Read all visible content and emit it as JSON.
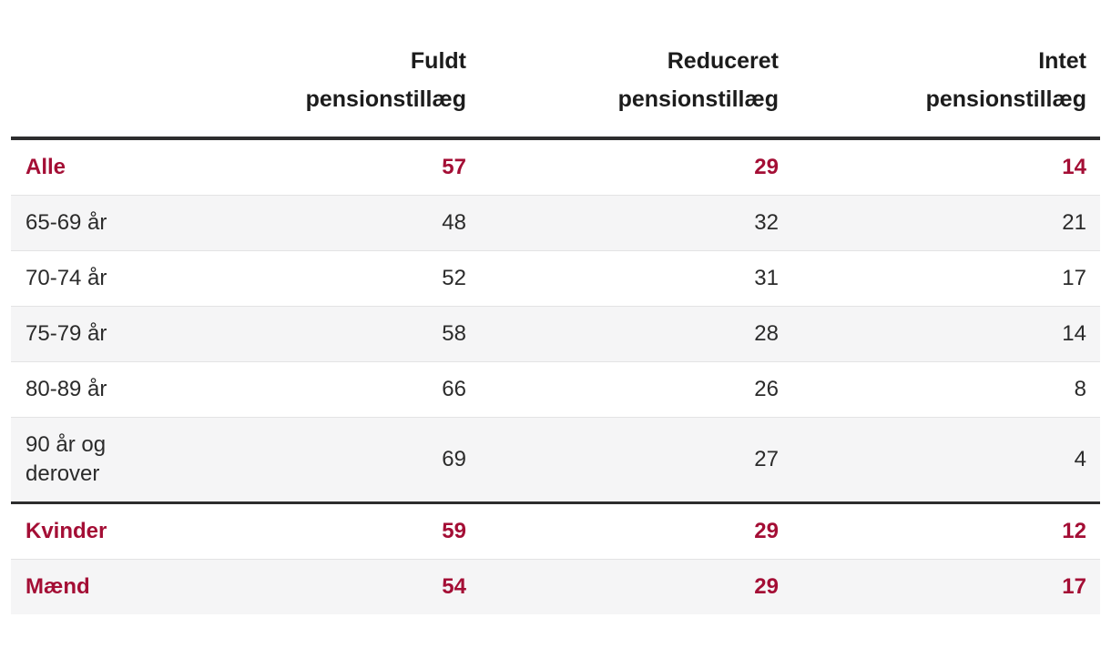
{
  "colors": {
    "accent_red": "#a40e35",
    "body_text": "#2b2b2b",
    "header_rule": "#2d2d2e",
    "section_rule": "#2d2d2e",
    "row_rule": "#e3e3e4",
    "zebra_row": "#f5f5f6",
    "background": "#ffffff"
  },
  "chart_data": {
    "type": "table",
    "columns": [
      {
        "label": "Fuldt\npensionstillæg"
      },
      {
        "label": "Reduceret\npensionstillæg"
      },
      {
        "label": "Intet\npensionstillæg"
      }
    ],
    "rows": [
      {
        "label": "Alle",
        "values": [
          57,
          29,
          14
        ],
        "emphasis": true,
        "zebra": false
      },
      {
        "label": "65-69 år",
        "values": [
          48,
          32,
          21
        ],
        "emphasis": false,
        "zebra": true
      },
      {
        "label": "70-74 år",
        "values": [
          52,
          31,
          17
        ],
        "emphasis": false,
        "zebra": false
      },
      {
        "label": "75-79 år",
        "values": [
          58,
          28,
          14
        ],
        "emphasis": false,
        "zebra": true
      },
      {
        "label": "80-89 år",
        "values": [
          66,
          26,
          8
        ],
        "emphasis": false,
        "zebra": false
      },
      {
        "label": "90 år og derover",
        "values": [
          69,
          27,
          4
        ],
        "emphasis": false,
        "zebra": true
      },
      {
        "label": "Kvinder",
        "values": [
          59,
          29,
          12
        ],
        "emphasis": true,
        "zebra": false
      },
      {
        "label": "Mænd",
        "values": [
          54,
          29,
          17
        ],
        "emphasis": true,
        "zebra": true
      }
    ]
  }
}
